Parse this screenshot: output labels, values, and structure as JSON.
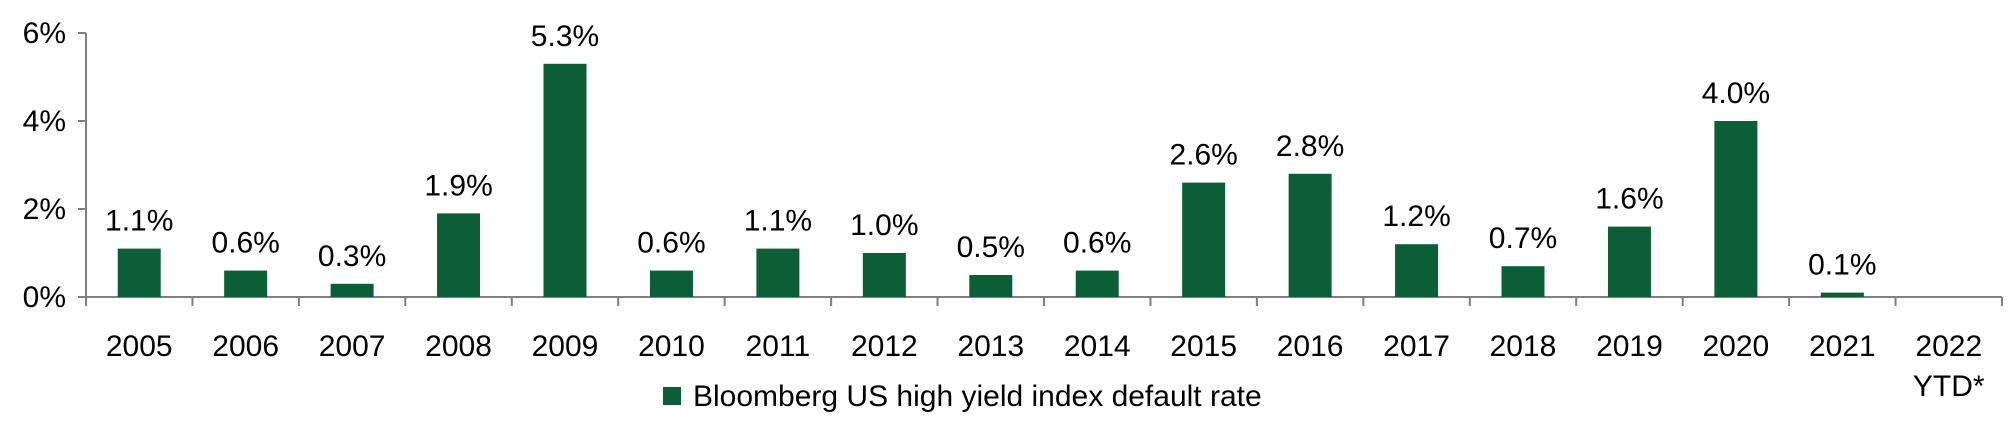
{
  "chart_data": {
    "type": "bar",
    "categories": [
      "2005",
      "2006",
      "2007",
      "2008",
      "2009",
      "2010",
      "2011",
      "2012",
      "2013",
      "2014",
      "2015",
      "2016",
      "2017",
      "2018",
      "2019",
      "2020",
      "2021",
      "2022\nYTD*"
    ],
    "series": [
      {
        "name": "Bloomberg US high yield index default rate",
        "values": [
          1.1,
          0.6,
          0.3,
          1.9,
          5.3,
          0.6,
          1.1,
          1.0,
          0.5,
          0.6,
          2.6,
          2.8,
          1.2,
          0.7,
          1.6,
          4.0,
          0.1,
          null
        ],
        "labels": [
          "1.1%",
          "0.6%",
          "0.3%",
          "1.9%",
          "5.3%",
          "0.6%",
          "1.1%",
          "1.0%",
          "0.5%",
          "0.6%",
          "2.6%",
          "2.8%",
          "1.2%",
          "0.7%",
          "1.6%",
          "4.0%",
          "0.1%",
          ""
        ],
        "color": "#0b5e35"
      }
    ],
    "y_ticks": [
      "0%",
      "2%",
      "4%",
      "6%"
    ],
    "ylim": [
      0,
      6
    ],
    "grid": false,
    "legend_position": "bottom-center",
    "axis_color": "#808080"
  }
}
